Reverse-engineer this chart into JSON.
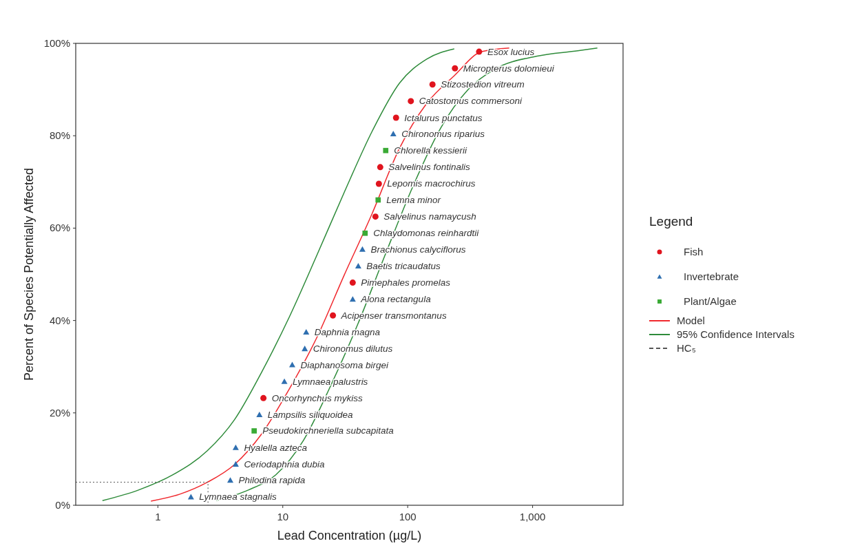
{
  "chart_data": {
    "type": "scatter",
    "xlabel": "Lead Concentration (µg/L)",
    "ylabel": "Percent of Species Potentially Affected",
    "legend_title": "Legend",
    "legend": "right",
    "log": "x",
    "grid": false,
    "xlim": [
      0.22,
      5300
    ],
    "xticks": [
      1,
      10,
      100,
      {
        "value": 1000,
        "label": "1,000"
      }
    ],
    "ylim": [
      0,
      100
    ],
    "yticks": [
      {
        "value": 0,
        "label": "0%"
      },
      {
        "value": 20,
        "label": "20%"
      },
      {
        "value": 40,
        "label": "40%"
      },
      {
        "value": 60,
        "label": "60%"
      },
      {
        "value": 80,
        "label": "80%"
      },
      {
        "value": 100,
        "label": "100%"
      }
    ],
    "series": [
      {
        "name": "Fish",
        "marker": "circle",
        "color": "#e0141e",
        "x": [
          7.0,
          25.2,
          36.3,
          55.2,
          58.8,
          60.3,
          80.7,
          106,
          158,
          239,
          373
        ],
        "values": [
          23.2,
          41.1,
          48.2,
          62.5,
          69.6,
          73.2,
          83.9,
          87.5,
          91.1,
          94.6,
          98.2
        ]
      },
      {
        "name": "Invertebrate",
        "marker": "triangle",
        "color": "#2f6fb0",
        "x": [
          1.84,
          3.8,
          4.2,
          4.2,
          6.5,
          10.3,
          11.9,
          15.0,
          15.4,
          36.3,
          40.2,
          43.4,
          76.7
        ],
        "values": [
          1.8,
          5.4,
          8.9,
          12.5,
          19.6,
          26.8,
          30.4,
          33.9,
          37.5,
          44.6,
          51.8,
          55.4,
          80.4
        ]
      },
      {
        "name": "Plant/Algae",
        "marker": "square",
        "color": "#3aaa35",
        "x": [
          5.9,
          45.6,
          58.0,
          66.7
        ],
        "values": [
          16.1,
          58.9,
          66.1,
          76.8
        ]
      },
      {
        "name": "Model",
        "type": "line",
        "line_style": "solid",
        "color": "#f0282d",
        "x": [
          0.88,
          1.5,
          2.5,
          4.1,
          6.8,
          11.3,
          18.8,
          31,
          52,
          86,
          142,
          236,
          390,
          650
        ],
        "values": [
          0.9,
          2.4,
          5,
          8.8,
          15.5,
          25.2,
          36.4,
          49.8,
          63.2,
          77.3,
          87,
          93,
          98.2,
          99
        ]
      },
      {
        "name": "95% Confidence Intervals",
        "type": "line",
        "line_style": "solid",
        "color": "#2e8b3a",
        "x": [
          0.36,
          0.7,
          1.32,
          2.49,
          4.1,
          6.8,
          11.3,
          18.8,
          31,
          52,
          86,
          142,
          236
        ],
        "values": [
          1,
          3.3,
          6.6,
          11.8,
          18.5,
          28.9,
          40.8,
          54.2,
          67.7,
          81,
          91.4,
          96.6,
          98.8
        ]
      },
      {
        "type": "line",
        "line_style": "solid",
        "color": "#2e8b3a",
        "x": [
          2.93,
          5.3,
          8.8,
          14.6,
          24.2,
          40,
          66,
          110,
          184,
          305,
          505,
          1070,
          2300,
          3300
        ],
        "values": [
          1,
          3.3,
          6.6,
          14,
          25.9,
          39.3,
          54.2,
          69,
          81.7,
          90,
          94.5,
          97.2,
          98.4,
          99
        ]
      },
      {
        "name": "HC₅",
        "type": "line",
        "line_style": "dashed",
        "color": "#555555",
        "x": [
          0.22,
          2.52,
          2.52
        ],
        "values": [
          5,
          5,
          0
        ]
      }
    ],
    "annotations": [
      {
        "text": "Lymnaea stagnalis",
        "x": 1.84,
        "y": 1.8
      },
      {
        "text": "Philodina rapida",
        "x": 3.8,
        "y": 5.4
      },
      {
        "text": "Ceriodaphnia dubia",
        "x": 4.2,
        "y": 8.9
      },
      {
        "text": "Hyalella azteca",
        "x": 4.2,
        "y": 12.5
      },
      {
        "text": "Pseudokirchneriella subcapitata",
        "x": 5.9,
        "y": 16.1
      },
      {
        "text": "Lampsilis siliquoidea",
        "x": 6.5,
        "y": 19.6
      },
      {
        "text": "Oncorhynchus mykiss",
        "x": 7.0,
        "y": 23.2
      },
      {
        "text": "Lymnaea palustris",
        "x": 10.3,
        "y": 26.8
      },
      {
        "text": "Diaphanosoma birgei",
        "x": 11.9,
        "y": 30.4
      },
      {
        "text": "Chironomus dilutus",
        "x": 15.0,
        "y": 33.9
      },
      {
        "text": "Daphnia magna",
        "x": 15.4,
        "y": 37.5
      },
      {
        "text": "Acipenser transmontanus",
        "x": 25.2,
        "y": 41.1
      },
      {
        "text": "Alona rectangula",
        "x": 36.3,
        "y": 44.6
      },
      {
        "text": "Pimephales promelas",
        "x": 36.3,
        "y": 48.2
      },
      {
        "text": "Baetis tricaudatus",
        "x": 40.2,
        "y": 51.8
      },
      {
        "text": "Brachionus calyciflorus",
        "x": 43.4,
        "y": 55.4
      },
      {
        "text": "Chlaydomonas reinhardtii",
        "x": 45.6,
        "y": 58.9
      },
      {
        "text": "Salvelinus namaycush",
        "x": 55.2,
        "y": 62.5
      },
      {
        "text": "Lemna minor",
        "x": 58.0,
        "y": 66.1
      },
      {
        "text": "Lepomis macrochirus",
        "x": 58.8,
        "y": 69.6
      },
      {
        "text": "Salvelinus fontinalis",
        "x": 60.3,
        "y": 73.2
      },
      {
        "text": "Chlorella kessierii",
        "x": 66.7,
        "y": 76.8
      },
      {
        "text": "Chironomus riparius",
        "x": 76.7,
        "y": 80.4
      },
      {
        "text": "Ictalurus punctatus",
        "x": 80.7,
        "y": 83.9
      },
      {
        "text": "Catostomus commersoni",
        "x": 106,
        "y": 87.5
      },
      {
        "text": "Stizostedion vitreum",
        "x": 158,
        "y": 91.1
      },
      {
        "text": "Micropterus dolomieui",
        "x": 239,
        "y": 94.6
      },
      {
        "text": "Esox lucius",
        "x": 373,
        "y": 98.2
      }
    ]
  }
}
